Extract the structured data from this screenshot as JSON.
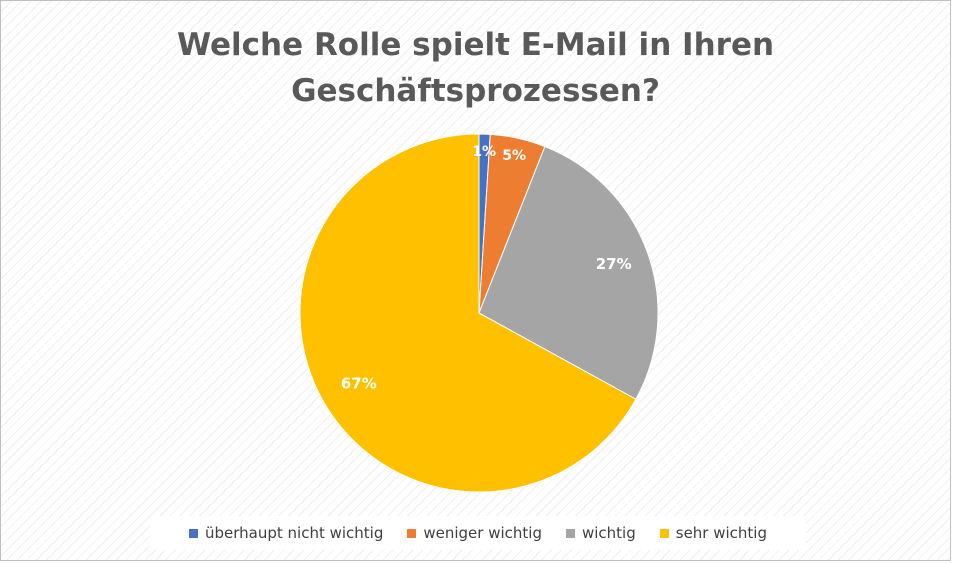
{
  "chart_data": {
    "type": "pie",
    "title_lines": [
      "Welche Rolle spielt E-Mail in Ihren",
      "Geschäftsprozessen?"
    ],
    "categories": [
      "überhaupt nicht wichtig",
      "weniger wichtig",
      "wichtig",
      "sehr wichtig"
    ],
    "values": [
      1,
      5,
      27,
      67
    ],
    "data_labels": [
      "1%",
      "5%",
      "27%",
      "67%"
    ],
    "colors": [
      "#4472C4",
      "#ED7D31",
      "#A5A5A5",
      "#FFC000"
    ],
    "legend_position": "bottom",
    "start_angle": "12 o'clock",
    "direction": "clockwise"
  }
}
